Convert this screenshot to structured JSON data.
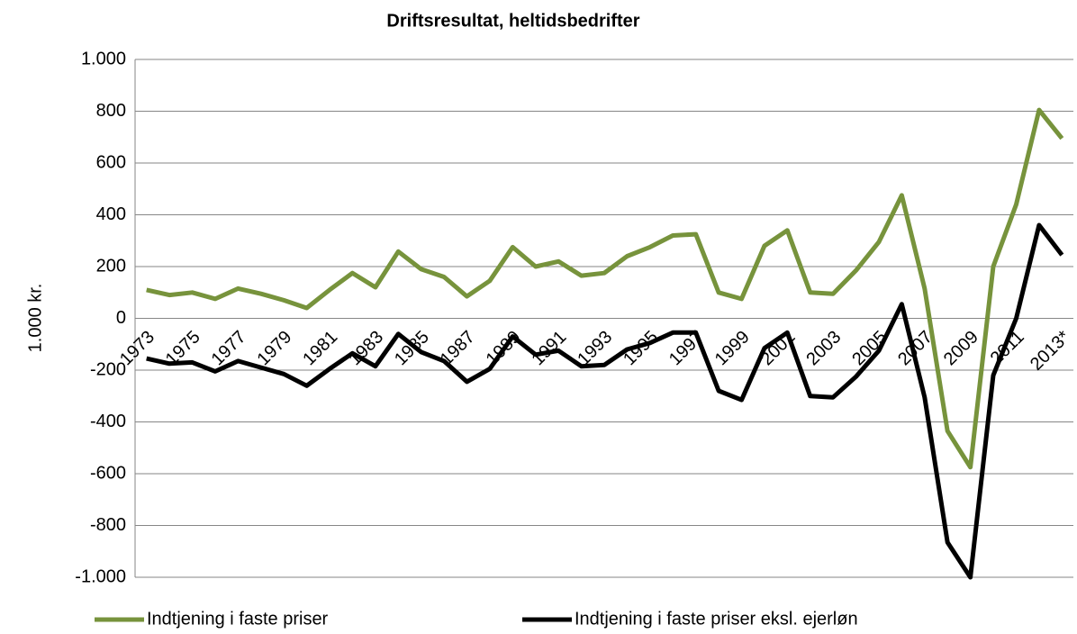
{
  "chart_data": {
    "type": "line",
    "title": "Driftsresultat, heltidsbedrifter",
    "y_label": "1.000 kr.",
    "categories": [
      "1973",
      null,
      "1975",
      null,
      "1977",
      null,
      "1979",
      null,
      "1981",
      null,
      "1983",
      null,
      "1985",
      null,
      "1987",
      null,
      "1989",
      null,
      "1991",
      null,
      "1993",
      null,
      "1995",
      null,
      "1997",
      null,
      "1999",
      null,
      "2001",
      null,
      "2003",
      null,
      "2005",
      null,
      "2007",
      null,
      "2009",
      null,
      "2011",
      null,
      "2013*"
    ],
    "series": [
      {
        "name": "Indtjening i faste priser",
        "color": "#77933c",
        "values": [
          110,
          90,
          100,
          75,
          115,
          95,
          70,
          40,
          110,
          175,
          120,
          258,
          190,
          160,
          85,
          145,
          275,
          200,
          220,
          165,
          175,
          240,
          275,
          320,
          325,
          100,
          75,
          280,
          340,
          100,
          95,
          185,
          295,
          475,
          115,
          -435,
          -575,
          200,
          440,
          805,
          695
        ]
      },
      {
        "name": "Indtjening i faste priser eksl. ejerløn",
        "color": "#000000",
        "values": [
          -155,
          -175,
          -170,
          -205,
          -165,
          -190,
          -215,
          -260,
          -195,
          -135,
          -185,
          -60,
          -130,
          -165,
          -245,
          -195,
          -70,
          -140,
          -125,
          -185,
          -180,
          -120,
          -95,
          -55,
          -55,
          -280,
          -315,
          -115,
          -55,
          -300,
          -305,
          -225,
          -125,
          55,
          -305,
          -865,
          -1000,
          -220,
          0,
          360,
          245
        ]
      }
    ],
    "ylim": [
      -1000,
      1000
    ],
    "yticks": [
      {
        "value": -1000,
        "label": "-1.000"
      },
      -800,
      -600,
      -400,
      -200,
      0,
      200,
      400,
      600,
      800,
      {
        "value": 1000,
        "label": "1.000"
      }
    ],
    "grid": true,
    "legend": "bottom"
  }
}
